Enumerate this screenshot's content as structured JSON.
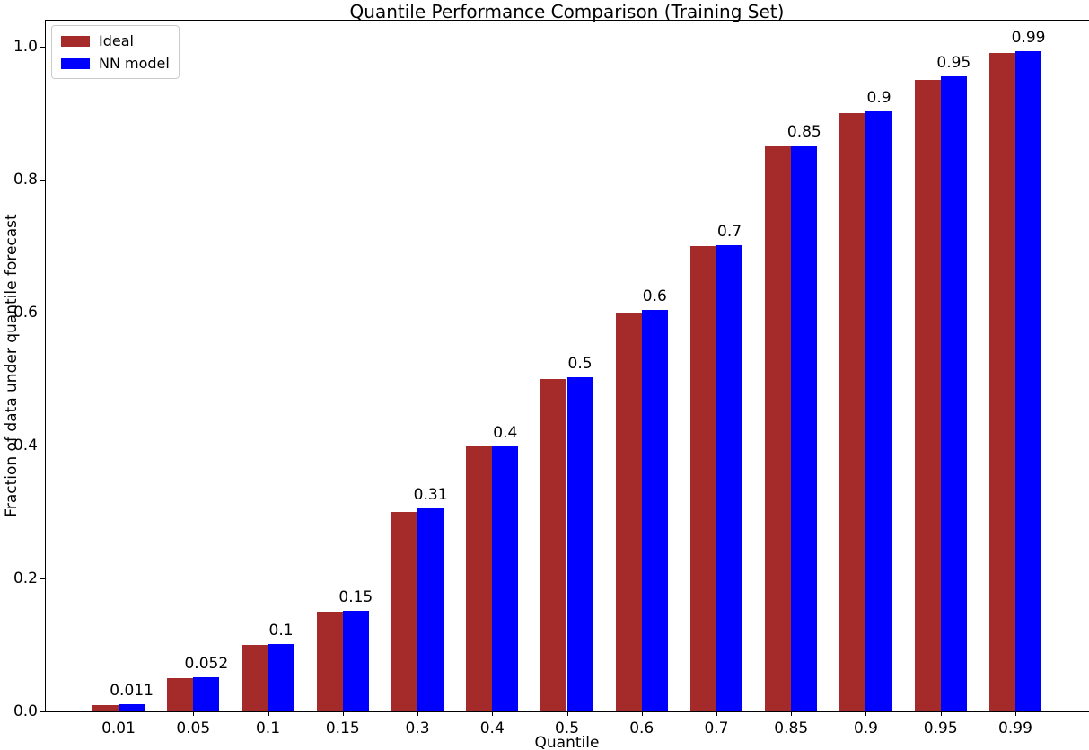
{
  "chart_data": {
    "type": "bar",
    "title": "Quantile Performance Comparison (Training Set)",
    "xlabel": "Quantile",
    "ylabel": "Fraction of data under quantile forecast",
    "categories": [
      "0.01",
      "0.05",
      "0.1",
      "0.15",
      "0.3",
      "0.4",
      "0.5",
      "0.6",
      "0.7",
      "0.85",
      "0.9",
      "0.95",
      "0.99"
    ],
    "series": [
      {
        "name": "Ideal",
        "color": "#A52A2A",
        "values": [
          0.01,
          0.05,
          0.1,
          0.15,
          0.3,
          0.4,
          0.5,
          0.6,
          0.7,
          0.85,
          0.9,
          0.95,
          0.99
        ]
      },
      {
        "name": "NN model",
        "color": "#0000FF",
        "values": [
          0.011,
          0.052,
          0.102,
          0.152,
          0.305,
          0.398,
          0.503,
          0.604,
          0.702,
          0.851,
          0.903,
          0.955,
          0.993
        ]
      }
    ],
    "bar_labels": [
      "0.011",
      "0.052",
      "0.1",
      "0.15",
      "0.31",
      "0.4",
      "0.5",
      "0.6",
      "0.7",
      "0.85",
      "0.9",
      "0.95",
      "0.99"
    ],
    "yticks": [
      "0.0",
      "0.2",
      "0.4",
      "0.6",
      "0.8",
      "1.0"
    ],
    "ylim": [
      0,
      1.04
    ],
    "xlim": [
      -0.985,
      12.985
    ],
    "grid": false,
    "legend_position": "upper left"
  },
  "legend": {
    "items": [
      {
        "label": "Ideal",
        "color": "#A52A2A"
      },
      {
        "label": "NN model",
        "color": "#0000FF"
      }
    ]
  }
}
